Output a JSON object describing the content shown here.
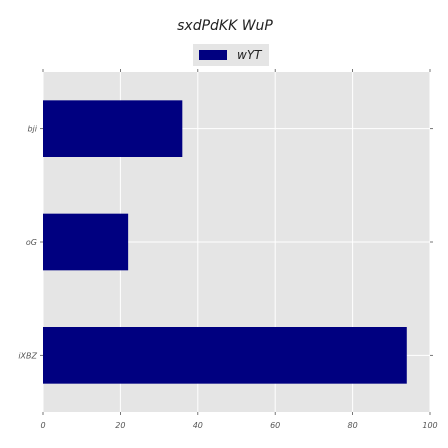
{
  "chart_data": {
    "type": "bar",
    "orientation": "horizontal",
    "title": "sxdPdKK WuP",
    "categories": [
      "bji",
      "oG",
      "iXBZ"
    ],
    "series": [
      {
        "name": "wYT",
        "values": [
          36,
          22,
          94
        ],
        "color": "#000080"
      }
    ],
    "xlim": [
      0,
      100
    ],
    "xticks": [
      0,
      20,
      40,
      60,
      80,
      100
    ],
    "xlabel": "",
    "ylabel": "",
    "grid": true,
    "legend_position": "top-center",
    "colors": {
      "plot_background": "#e5e5e5",
      "grid": "#ffffff",
      "bar": "#000080"
    }
  }
}
